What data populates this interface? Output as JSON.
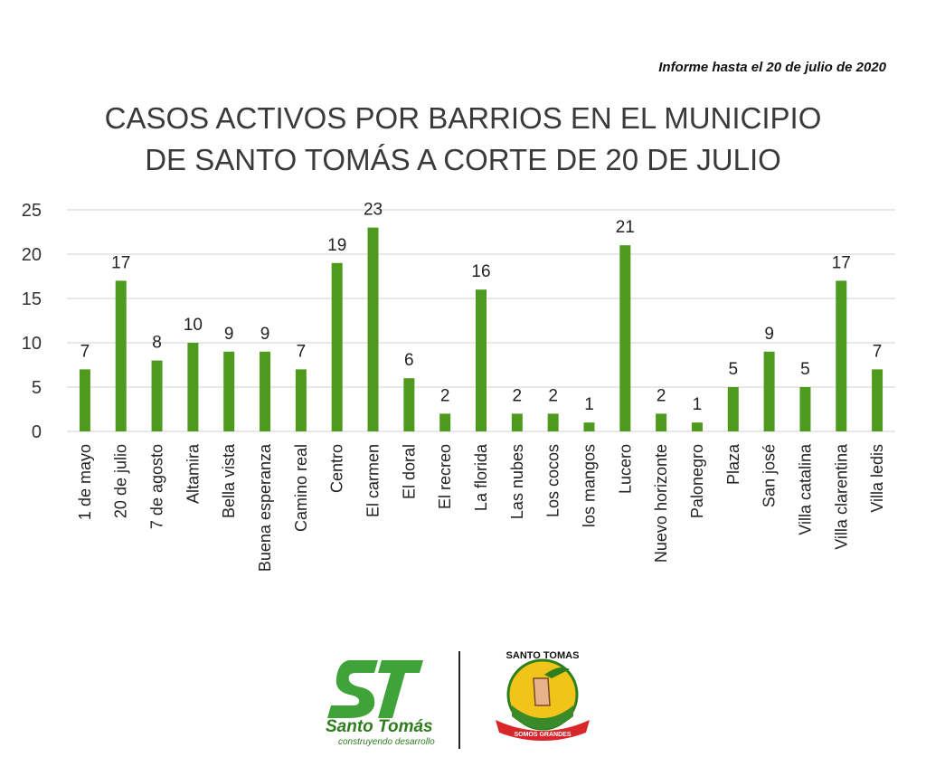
{
  "report_date": "Informe hasta el 20 de julio de 2020",
  "chart_data": {
    "type": "bar",
    "title_lines": [
      "CASOS ACTIVOS POR BARRIOS EN EL MUNICIPIO",
      "DE SANTO TOMÁS A CORTE DE 20 DE JULIO"
    ],
    "categories": [
      "1 de mayo",
      "20 de julio",
      "7 de agosto",
      "Altamira",
      "Bella vista",
      "Buena esperanza",
      "Camino real",
      "Centro",
      "El carmen",
      "El doral",
      "El recreo",
      "La florida",
      "Las nubes",
      "Los cocos",
      "los mangos",
      "Lucero",
      "Nuevo horizonte",
      "Palonegro",
      "Plaza",
      "San josé",
      "Villa catalina",
      "Villa clarentina",
      "Villa ledis"
    ],
    "values": [
      7,
      17,
      8,
      10,
      9,
      9,
      7,
      19,
      23,
      6,
      2,
      16,
      2,
      2,
      1,
      21,
      2,
      1,
      5,
      9,
      5,
      17,
      7
    ],
    "yticks": [
      0,
      5,
      10,
      15,
      20,
      25
    ],
    "ylim": [
      0,
      25
    ],
    "grid": true,
    "bar_color": "#4e9a1f",
    "data_labels": true
  },
  "logos": {
    "st_name": "Santo Tomás",
    "st_tagline": "construyendo desarrollo",
    "seal_text": "SANTO TOMAS",
    "seal_ribbon": "SOMOS GRANDES"
  }
}
